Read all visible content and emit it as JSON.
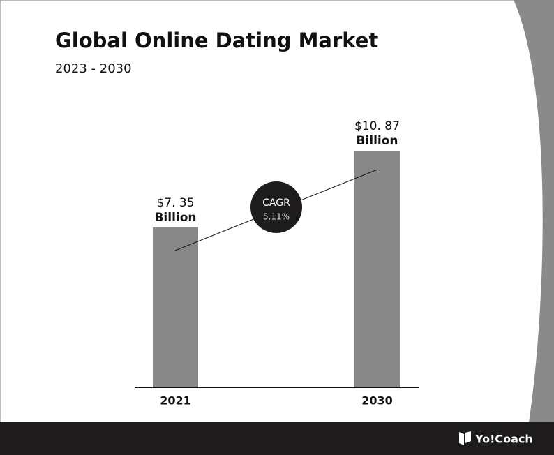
{
  "chart_data": {
    "type": "bar",
    "title": "Global Online Dating Market",
    "subtitle": "2023 - 2030",
    "categories": [
      "2021",
      "2030"
    ],
    "values": [
      7.35,
      10.87
    ],
    "value_labels": [
      "$7. 35",
      "$10. 87"
    ],
    "unit_label": "Billion",
    "color": "#888888",
    "annotation": {
      "label": "CAGR",
      "text": "5.11%"
    }
  },
  "footer": {
    "brand": "Yo!Coach"
  }
}
